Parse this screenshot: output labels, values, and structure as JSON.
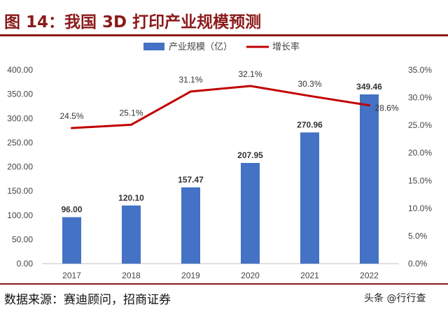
{
  "title": "图 14：我国 3D 打印产业规模预测",
  "source": "数据来源：赛迪顾问，招商证券",
  "watermark": "头条 @行行查",
  "colors": {
    "bar": "#4472c4",
    "line": "#c00000",
    "title": "#8b1a1a"
  },
  "chart_data": {
    "type": "bar",
    "title": "",
    "categories": [
      "2017",
      "2018",
      "2019",
      "2020",
      "2021",
      "2022"
    ],
    "series": [
      {
        "name": "产业规模（亿）",
        "type": "bar",
        "axis": "left",
        "values": [
          96.0,
          120.1,
          157.47,
          207.95,
          270.96,
          349.46
        ],
        "labels": [
          "96.00",
          "120.10",
          "157.47",
          "207.95",
          "270.96",
          "349.46"
        ]
      },
      {
        "name": "增长率",
        "type": "line",
        "axis": "right",
        "values": [
          24.5,
          25.1,
          31.1,
          32.1,
          30.3,
          28.6
        ],
        "labels": [
          "24.5%",
          "25.1%",
          "31.1%",
          "32.1%",
          "30.3%",
          "28.6%"
        ]
      }
    ],
    "ylim_left": [
      0,
      400
    ],
    "ylim_right": [
      0,
      35
    ],
    "yticks_left": [
      "0.00",
      "50.00",
      "100.00",
      "150.00",
      "200.00",
      "250.00",
      "300.00",
      "350.00",
      "400.00"
    ],
    "yticks_right": [
      "0.0%",
      "5.0%",
      "10.0%",
      "15.0%",
      "20.0%",
      "25.0%",
      "30.0%",
      "35.0%"
    ],
    "legend_position": "top-center",
    "grid": false
  }
}
